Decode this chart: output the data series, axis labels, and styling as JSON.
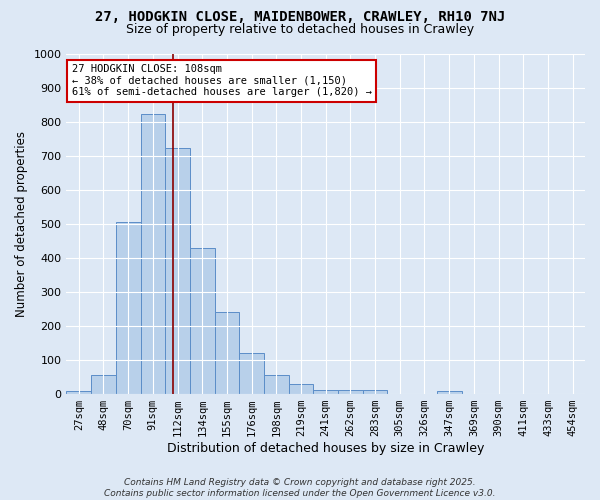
{
  "title_line1": "27, HODGKIN CLOSE, MAIDENBOWER, CRAWLEY, RH10 7NJ",
  "title_line2": "Size of property relative to detached houses in Crawley",
  "xlabel": "Distribution of detached houses by size in Crawley",
  "ylabel": "Number of detached properties",
  "bar_categories": [
    "27sqm",
    "48sqm",
    "70sqm",
    "91sqm",
    "112sqm",
    "134sqm",
    "155sqm",
    "176sqm",
    "198sqm",
    "219sqm",
    "241sqm",
    "262sqm",
    "283sqm",
    "305sqm",
    "326sqm",
    "347sqm",
    "369sqm",
    "390sqm",
    "411sqm",
    "433sqm",
    "454sqm"
  ],
  "bar_values": [
    8,
    55,
    505,
    825,
    725,
    430,
    240,
    120,
    55,
    30,
    12,
    12,
    12,
    0,
    0,
    8,
    0,
    0,
    0,
    0,
    0
  ],
  "bar_color": "#b8d0ea",
  "bar_edge_color": "#5b8dc8",
  "background_color": "#dde8f5",
  "grid_color": "#ffffff",
  "vline_color": "#8b0000",
  "annotation_line1": "27 HODGKIN CLOSE: 108sqm",
  "annotation_line2": "← 38% of detached houses are smaller (1,150)",
  "annotation_line3": "61% of semi-detached houses are larger (1,820) →",
  "annotation_box_color": "#ffffff",
  "annotation_box_edge_color": "#cc0000",
  "ylim": [
    0,
    1000
  ],
  "yticks": [
    0,
    100,
    200,
    300,
    400,
    500,
    600,
    700,
    800,
    900,
    1000
  ],
  "footer_line1": "Contains HM Land Registry data © Crown copyright and database right 2025.",
  "footer_line2": "Contains public sector information licensed under the Open Government Licence v3.0.",
  "vline_pos": 3.81
}
